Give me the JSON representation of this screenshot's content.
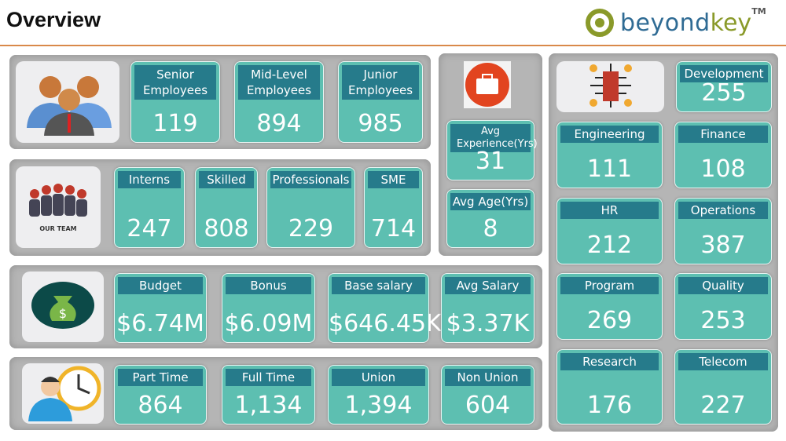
{
  "header": {
    "title": "Overview",
    "logo_text_1": "beyond",
    "logo_text_2": "key",
    "logo_tm": "TM"
  },
  "colors": {
    "card": "#5dbfb1",
    "card_header": "#267b8b",
    "panel": "#b5b5b5",
    "rule": "#d9894a"
  },
  "groups": {
    "levels": {
      "icon": "people-group-icon",
      "cards": [
        {
          "label": "Senior Employees",
          "value": "119"
        },
        {
          "label": "Mid-Level Employees",
          "value": "894"
        },
        {
          "label": "Junior Employees",
          "value": "985"
        }
      ]
    },
    "team": {
      "icon": "our-team-icon",
      "icon_caption": "OUR TEAM",
      "cards": [
        {
          "label": "Interns",
          "value": "247"
        },
        {
          "label": "Skilled",
          "value": "808"
        },
        {
          "label": "Professionals",
          "value": "229"
        },
        {
          "label": "SME",
          "value": "714"
        }
      ]
    },
    "experience": {
      "icon": "briefcase-icon",
      "cards": [
        {
          "label": "Avg Experience(Yrs)",
          "value": "31"
        },
        {
          "label": "Avg Age(Yrs)",
          "value": "8"
        }
      ]
    },
    "salary": {
      "icon": "money-bag-icon",
      "cards": [
        {
          "label": "Budget",
          "value": "$6.74M"
        },
        {
          "label": "Bonus",
          "value": "$6.09M"
        },
        {
          "label": "Base salary",
          "value": "$646.45K"
        },
        {
          "label": "Avg Salary",
          "value": "$3.37K"
        }
      ]
    },
    "time": {
      "icon": "employee-clock-icon",
      "cards": [
        {
          "label": "Part Time",
          "value": "864"
        },
        {
          "label": "Full Time",
          "value": "1,134"
        },
        {
          "label": "Union",
          "value": "1,394"
        },
        {
          "label": "Non Union",
          "value": "604"
        }
      ]
    },
    "departments": {
      "icon": "organization-network-icon",
      "cards": [
        {
          "label": "Development",
          "value": "255"
        },
        {
          "label": "Engineering",
          "value": "111"
        },
        {
          "label": "Finance",
          "value": "108"
        },
        {
          "label": "HR",
          "value": "212"
        },
        {
          "label": "Operations",
          "value": "387"
        },
        {
          "label": "Program",
          "value": "269"
        },
        {
          "label": "Quality",
          "value": "253"
        },
        {
          "label": "Research",
          "value": "176"
        },
        {
          "label": "Telecom",
          "value": "227"
        }
      ]
    }
  }
}
